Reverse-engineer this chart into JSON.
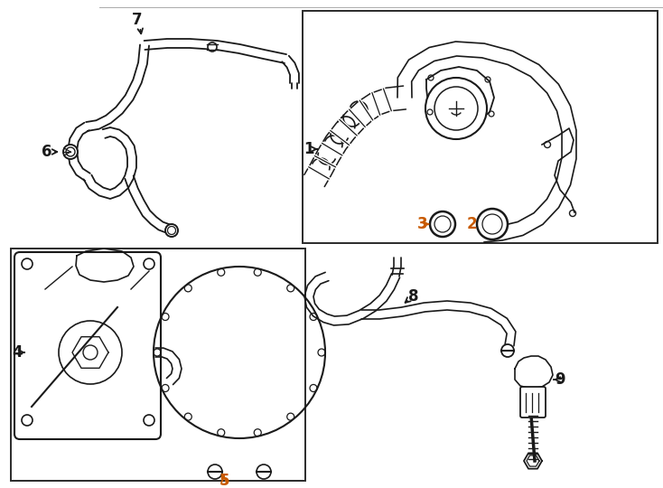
{
  "bg_color": "#ffffff",
  "line_color": "#1a1a1a",
  "orange_color": "#c85a00",
  "box_color": "#2a2a2a",
  "figsize": [
    7.34,
    5.4
  ],
  "dpi": 100
}
